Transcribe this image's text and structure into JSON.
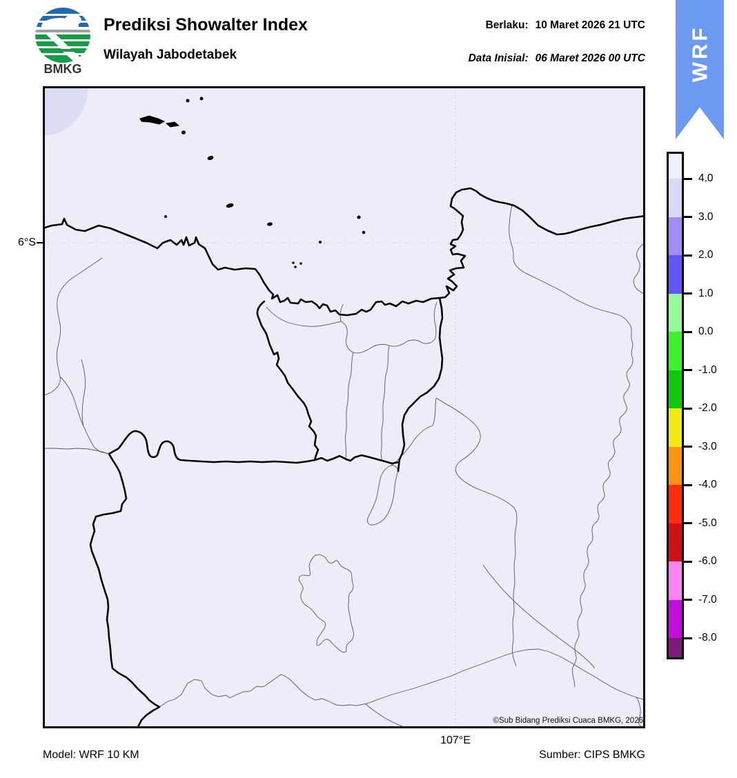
{
  "header": {
    "title": "Prediksi Showalter Index",
    "subtitle": "Wilayah Jabodetabek",
    "valid_label": "Berlaku:",
    "valid_value": "10 Maret 2026 21 UTC",
    "init_label": "Data Inisial:",
    "init_value": "06 Maret 2026 00 UTC",
    "logo_text": "BMKG"
  },
  "ribbon": {
    "label": "WRF",
    "color": "#6c9af0"
  },
  "map": {
    "background_color": "#ededf9",
    "patch_color": "#dcdcf4",
    "lat_label": "6°S",
    "lon_label": "107°E",
    "copyright": "©Sub Bidang Prediksi Cuaca BMKG, 2026"
  },
  "legend": {
    "tick_labels": [
      "4.0",
      "3.0",
      "2.0",
      "1.0",
      "0.0",
      "-1.0",
      "-2.0",
      "-3.0",
      "-4.0",
      "-5.0",
      "-6.0",
      "-7.0",
      "-8.0"
    ],
    "colors": [
      "#eef0fb",
      "#d8daf6",
      "#a18df3",
      "#6156f3",
      "#97f997",
      "#3df32c",
      "#0fc90f",
      "#f1ea15",
      "#fa9413",
      "#fa2d0e",
      "#ca1217",
      "#f985f2",
      "#c20ddb",
      "#7a1c78"
    ]
  },
  "footer": {
    "model": "Model: WRF 10 KM",
    "source": "Sumber: CIPS BMKG"
  }
}
